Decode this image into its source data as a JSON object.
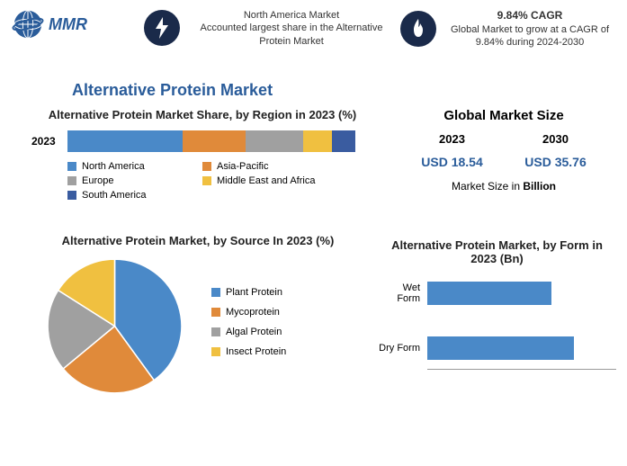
{
  "logo_text": "MMR",
  "header": {
    "na": {
      "title": "North America Market",
      "desc": "Accounted largest share in the Alternative Protein Market"
    },
    "cagr": {
      "title": "9.84% CAGR",
      "desc": "Global Market to grow at a CAGR of 9.84% during 2024-2030"
    }
  },
  "main_title": "Alternative Protein Market",
  "region_chart": {
    "title": "Alternative Protein Market Share, by Region in 2023 (%)",
    "year_label": "2023",
    "series": [
      {
        "label": "North America",
        "value": 40,
        "color": "#4a89c8"
      },
      {
        "label": "Asia-Pacific",
        "value": 22,
        "color": "#e08a3a"
      },
      {
        "label": "Europe",
        "value": 20,
        "color": "#a0a0a0"
      },
      {
        "label": "Middle East and Africa",
        "value": 10,
        "color": "#f0c040"
      },
      {
        "label": "South America",
        "value": 8,
        "color": "#3a5ca0"
      }
    ]
  },
  "gms": {
    "title": "Global Market Size",
    "cols": [
      {
        "year": "2023",
        "value": "USD 18.54"
      },
      {
        "year": "2030",
        "value": "USD 35.76"
      }
    ],
    "note_pre": "Market Size in ",
    "note_bold": "Billion"
  },
  "source_chart": {
    "title": "Alternative Protein Market, by Source In 2023 (%)",
    "series": [
      {
        "label": "Plant Protein",
        "value": 40,
        "color": "#4a89c8"
      },
      {
        "label": "Mycoprotein",
        "value": 24,
        "color": "#e08a3a"
      },
      {
        "label": "Algal Protein",
        "value": 20,
        "color": "#a0a0a0"
      },
      {
        "label": "Insect Protein",
        "value": 16,
        "color": "#f0c040"
      }
    ]
  },
  "form_chart": {
    "title": "Alternative Protein Market, by Form in 2023 (Bn)",
    "bar_color": "#4a89c8",
    "max": 12,
    "series": [
      {
        "label": "Wet Form",
        "value": 8.5
      },
      {
        "label": "Dry Form",
        "value": 10.0
      }
    ]
  }
}
